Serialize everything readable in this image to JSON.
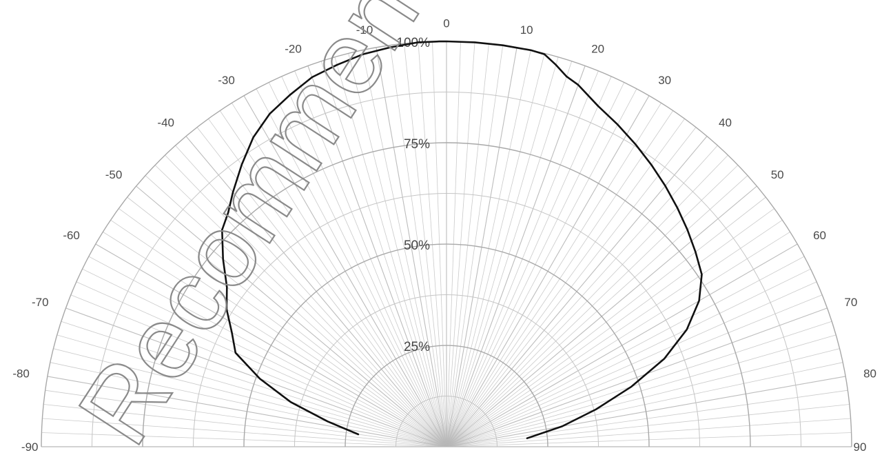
{
  "chart_data": {
    "type": "polar-line",
    "description_scope": "half-polar radiation pattern, angle in degrees from -90 to 90, radius in percent",
    "angle_ticks": [
      -90,
      -80,
      -70,
      -60,
      -50,
      -40,
      -30,
      -20,
      -10,
      0,
      10,
      20,
      30,
      40,
      50,
      60,
      70,
      80,
      90
    ],
    "radial_ticks": [
      "25%",
      "50%",
      "75%",
      "100%"
    ],
    "radial_range": [
      0,
      100
    ],
    "angle_range": [
      -90,
      90
    ],
    "grid": true,
    "line_color": "#111111",
    "grid_color": "#b8b8b8",
    "series": [
      {
        "angle_deg": [
          -82,
          -78,
          -74,
          -70,
          -66,
          -62,
          -58,
          -54,
          -50,
          -46,
          -43,
          -40,
          -36,
          -32,
          -28,
          -24,
          -20,
          -16,
          -12,
          -8,
          -4,
          -1,
          0,
          4,
          8,
          12,
          14,
          16,
          18,
          20,
          24,
          28,
          32,
          36,
          40,
          44,
          48,
          52,
          56,
          60,
          64,
          68,
          72,
          76,
          80,
          84
        ],
        "radius_pct": [
          22,
          30,
          40,
          49,
          57,
          60,
          64,
          67,
          72,
          77,
          79,
          82,
          86,
          90,
          93,
          95,
          97,
          98,
          99,
          99.5,
          100,
          100,
          100,
          100,
          100,
          100,
          99.8,
          98,
          96,
          95,
          92,
          90,
          88,
          86,
          84,
          82,
          80,
          78,
          76,
          72,
          66,
          58,
          48,
          38,
          29,
          20
        ]
      }
    ]
  },
  "watermark": {
    "text": "Recommended fo"
  }
}
